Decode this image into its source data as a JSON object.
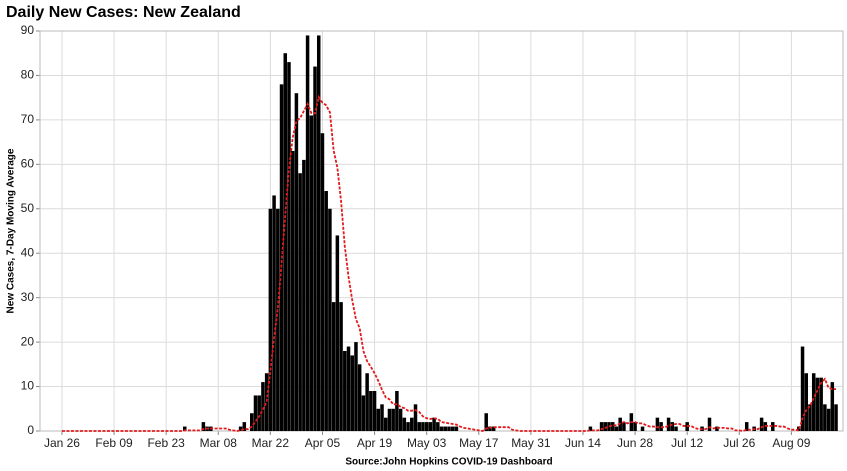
{
  "chart_data": {
    "type": "bar",
    "title": "Daily New Cases: New Zealand",
    "ylabel": "New Cases, 7-Day Moving Average",
    "source": "Source:John Hopkins COVID-19 Dashboard",
    "categories": [
      "Jan 26",
      null,
      null,
      null,
      null,
      null,
      null,
      null,
      null,
      null,
      null,
      null,
      null,
      null,
      "Feb 09",
      null,
      null,
      null,
      null,
      null,
      null,
      null,
      null,
      null,
      null,
      null,
      null,
      null,
      "Feb 23",
      null,
      null,
      null,
      null,
      null,
      null,
      null,
      null,
      null,
      null,
      null,
      null,
      null,
      "Mar 08",
      null,
      null,
      null,
      null,
      null,
      null,
      null,
      null,
      null,
      null,
      null,
      null,
      null,
      "Mar 22",
      null,
      null,
      null,
      null,
      null,
      null,
      null,
      null,
      null,
      null,
      null,
      null,
      null,
      "Apr 05",
      null,
      null,
      null,
      null,
      null,
      null,
      null,
      null,
      null,
      null,
      null,
      null,
      null,
      "Apr 19",
      null,
      null,
      null,
      null,
      null,
      null,
      null,
      null,
      null,
      null,
      null,
      null,
      null,
      "May 03",
      null,
      null,
      null,
      null,
      null,
      null,
      null,
      null,
      null,
      null,
      null,
      null,
      null,
      "May 17",
      null,
      null,
      null,
      null,
      null,
      null,
      null,
      null,
      null,
      null,
      null,
      null,
      null,
      "May 31",
      null,
      null,
      null,
      null,
      null,
      null,
      null,
      null,
      null,
      null,
      null,
      null,
      null,
      "Jun 14",
      null,
      null,
      null,
      null,
      null,
      null,
      null,
      null,
      null,
      null,
      null,
      null,
      null,
      "Jun 28",
      null,
      null,
      null,
      null,
      null,
      null,
      null,
      null,
      null,
      null,
      null,
      null,
      null,
      "Jul 12",
      null,
      null,
      null,
      null,
      null,
      null,
      null,
      null,
      null,
      null,
      null,
      null,
      null,
      "Jul 26",
      null,
      null,
      null,
      null,
      null,
      null,
      null,
      null,
      null,
      null,
      null,
      null,
      null,
      "Aug 09",
      null,
      null,
      null,
      null,
      null,
      null,
      null,
      null,
      null,
      null,
      null,
      null
    ],
    "series": [
      {
        "type": "bar",
        "color": "#000000",
        "values": [
          0,
          0,
          0,
          0,
          0,
          0,
          0,
          0,
          0,
          0,
          0,
          0,
          0,
          0,
          0,
          0,
          0,
          0,
          0,
          0,
          0,
          0,
          0,
          0,
          0,
          0,
          0,
          0,
          0,
          0,
          0,
          0,
          0,
          1,
          0,
          0,
          0,
          0,
          2,
          1,
          1,
          0,
          0,
          0,
          0,
          0,
          0,
          0,
          1,
          2,
          0,
          4,
          8,
          8,
          11,
          13,
          50,
          53,
          50,
          78,
          85,
          83,
          63,
          76,
          58,
          61,
          89,
          71,
          82,
          89,
          67,
          54,
          50,
          29,
          44,
          29,
          18,
          19,
          17,
          20,
          15,
          8,
          13,
          9,
          9,
          5,
          6,
          3,
          5,
          5,
          9,
          5,
          3,
          2,
          3,
          6,
          2,
          2,
          2,
          2,
          3,
          2,
          1,
          1,
          1,
          1,
          1,
          0,
          0,
          0,
          0,
          0,
          0,
          0,
          4,
          1,
          1,
          0,
          0,
          0,
          0,
          0,
          0,
          0,
          0,
          0,
          0,
          0,
          0,
          0,
          0,
          0,
          0,
          0,
          0,
          0,
          0,
          0,
          0,
          0,
          0,
          0,
          1,
          0,
          0,
          2,
          2,
          2,
          2,
          1,
          3,
          2,
          0,
          4,
          2,
          0,
          1,
          0,
          0,
          0,
          3,
          2,
          0,
          3,
          2,
          1,
          0,
          0,
          2,
          0,
          0,
          0,
          1,
          0,
          3,
          0,
          1,
          0,
          0,
          0,
          0,
          0,
          0,
          0,
          2,
          0,
          1,
          0,
          3,
          2,
          0,
          2,
          0,
          0,
          0,
          0,
          0,
          0,
          1,
          19,
          13,
          6,
          13,
          12,
          12,
          6,
          5,
          11,
          6
        ]
      },
      {
        "type": "line",
        "color": "#e31a1c",
        "values": [
          0,
          0,
          0,
          0,
          0,
          0,
          0,
          0,
          0,
          0,
          0,
          0,
          0,
          0,
          0,
          0,
          0,
          0,
          0,
          0,
          0,
          0,
          0,
          0,
          0,
          0,
          0,
          0,
          0,
          0,
          0,
          0,
          0,
          0.14,
          0.14,
          0.14,
          0.14,
          0.14,
          0.43,
          0.57,
          0.57,
          0.57,
          0.57,
          0.57,
          0.57,
          0.29,
          0.14,
          0,
          0.14,
          0.43,
          0.43,
          1,
          2.14,
          3.29,
          4.86,
          6.57,
          13.43,
          21,
          27.57,
          37.57,
          48.57,
          58.86,
          66,
          69.71,
          70.43,
          72,
          73.57,
          71.57,
          71.43,
          75.14,
          73.86,
          73.29,
          71.71,
          63.14,
          59.29,
          51.71,
          41.57,
          34.71,
          29.43,
          25.14,
          23.14,
          18,
          15.71,
          14.43,
          13,
          11.29,
          9.29,
          7.57,
          7.14,
          6,
          6,
          5.43,
          5.14,
          4.57,
          4.57,
          4.71,
          4.29,
          3.29,
          2.86,
          2.71,
          2.86,
          2.71,
          2,
          1.86,
          1.71,
          1.57,
          1.43,
          1,
          0.71,
          0.57,
          0.43,
          0.29,
          0.14,
          0,
          0.57,
          0.71,
          0.86,
          0.86,
          0.86,
          0.86,
          0.86,
          0.29,
          0.14,
          0,
          0,
          0,
          0,
          0,
          0,
          0,
          0,
          0,
          0,
          0,
          0,
          0,
          0,
          0,
          0,
          0,
          0,
          0,
          0.14,
          0.14,
          0.14,
          0.43,
          0.71,
          1,
          1.29,
          1.29,
          1.71,
          2,
          1.71,
          2,
          2,
          1.71,
          1.71,
          1.29,
          1,
          1,
          0.86,
          0.86,
          0.86,
          1.14,
          1.43,
          1.57,
          1.57,
          1.14,
          1.14,
          1.14,
          0.71,
          0.43,
          0.43,
          0.43,
          0.86,
          0.57,
          0.71,
          0.71,
          0.71,
          0.57,
          0.57,
          0.14,
          0.14,
          0,
          0.29,
          0.29,
          0.43,
          0.43,
          0.86,
          1.14,
          1.14,
          1.14,
          1.14,
          1,
          1,
          0.57,
          0.29,
          0.29,
          0.14,
          2.86,
          4.71,
          5.57,
          7.43,
          9.14,
          10.86,
          11.71,
          9.71,
          9.43,
          9.43
        ]
      }
    ],
    "ylim": [
      0,
      90
    ],
    "yticks": [
      0,
      10,
      20,
      30,
      40,
      50,
      60,
      70,
      80,
      90
    ],
    "grid": true
  }
}
